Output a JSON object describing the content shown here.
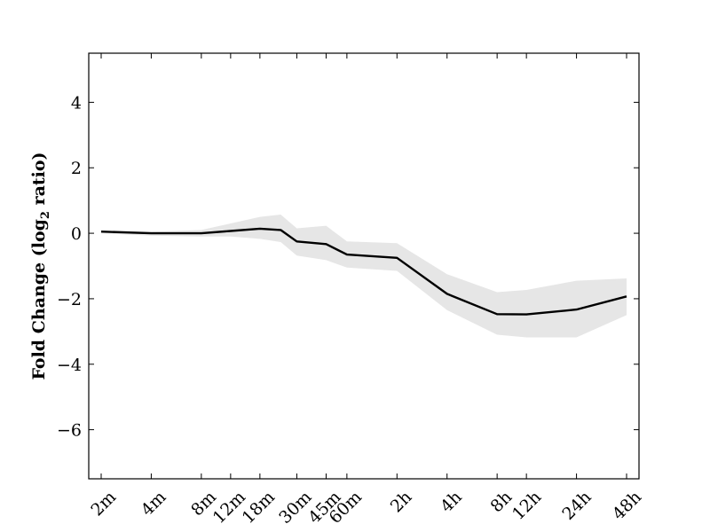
{
  "chart_data": {
    "type": "line",
    "xlabel": "",
    "ylabel": "Fold Change (log",
    "ylabel_sub": "2",
    "ylabel_tail": " ratio)",
    "ylim": [
      -7.5,
      5.5
    ],
    "yticks": [
      4,
      2,
      0,
      -2,
      -4,
      -6
    ],
    "ytick_labels": [
      "4",
      "2",
      "0",
      "−2",
      "−4",
      "−6"
    ],
    "x": [
      "2m",
      "4m",
      "8m",
      "12m",
      "18m",
      "24m",
      "30m",
      "45m",
      "60m",
      "2h",
      "4h",
      "8h",
      "12h",
      "24h",
      "48h"
    ],
    "xtick_labels": [
      "2m",
      "4m",
      "8m",
      "12m",
      "18m",
      "30m",
      "45m",
      "60m",
      "2h",
      "4h",
      "8h",
      "12h",
      "24h",
      "48h"
    ],
    "x_minutes": [
      2,
      4,
      8,
      12,
      18,
      24,
      30,
      45,
      60,
      120,
      240,
      480,
      720,
      1440,
      2880
    ],
    "xtick_minutes": [
      2,
      4,
      8,
      12,
      18,
      30,
      45,
      60,
      120,
      240,
      480,
      720,
      1440,
      2880
    ],
    "x_scale": "log",
    "series": [
      {
        "values": [
          0.05,
          0.0,
          0.0,
          0.07,
          0.14,
          0.1,
          -0.25,
          -0.33,
          -0.65,
          -0.75,
          -1.85,
          -2.47,
          -2.48,
          -2.33,
          -1.93
        ],
        "upper": [
          0.07,
          0.05,
          0.1,
          0.3,
          0.5,
          0.57,
          0.15,
          0.23,
          -0.25,
          -0.3,
          -1.25,
          -1.8,
          -1.73,
          -1.45,
          -1.38
        ],
        "lower": [
          0.0,
          -0.07,
          -0.1,
          -0.1,
          -0.17,
          -0.27,
          -0.68,
          -0.82,
          -1.05,
          -1.15,
          -2.35,
          -3.1,
          -3.18,
          -3.18,
          -2.5
        ],
        "line_color": "#000000",
        "band_color": "#e6e6e6"
      }
    ]
  }
}
